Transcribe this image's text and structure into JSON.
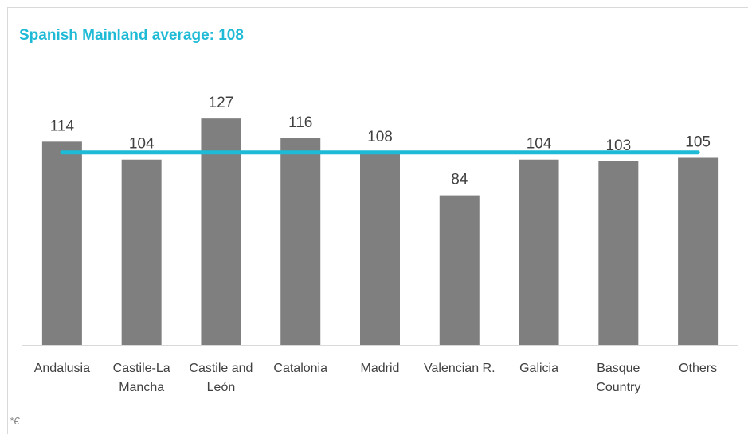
{
  "chart_data": {
    "type": "bar",
    "title": "Spanish Mainland average: 108",
    "categories": [
      "Andalusia",
      "Castile-La Mancha",
      "Castile and León",
      "Catalonia",
      "Madrid",
      "Valencian R.",
      "Galicia",
      "Basque Country",
      "Others"
    ],
    "values": [
      114,
      104,
      127,
      116,
      108,
      84,
      104,
      103,
      105
    ],
    "color": "#7f7f7f",
    "reference_line": {
      "value": 108,
      "color": "#1fbad6"
    },
    "ylim": [
      0,
      140
    ],
    "footnote": "*€"
  }
}
